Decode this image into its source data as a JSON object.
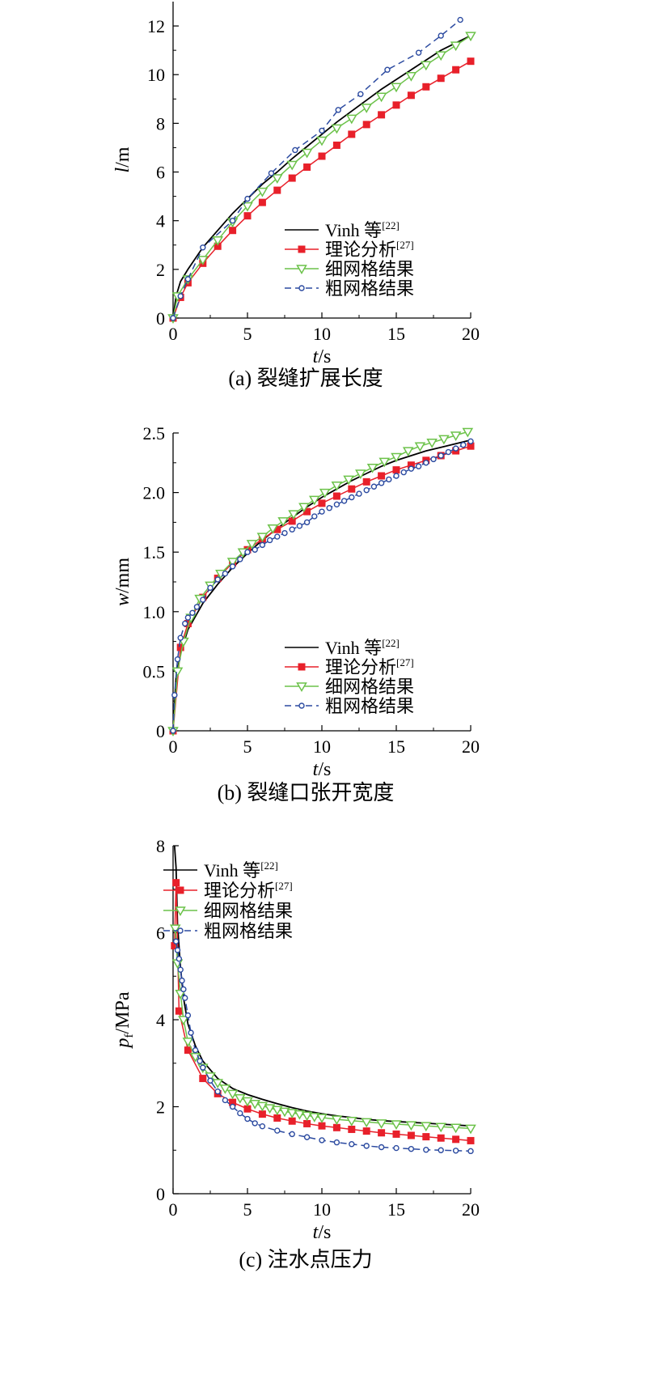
{
  "colors": {
    "vinh": "#000000",
    "theory": "#e8202a",
    "fine": "#6cc24a",
    "coarse": "#2b4aa0",
    "axis": "#000000",
    "background": "#ffffff"
  },
  "legend_labels": {
    "vinh": "Vinh 等",
    "vinh_ref": "[22]",
    "theory": "理论分析",
    "theory_ref": "[27]",
    "fine": "细网格结果",
    "coarse": "粗网格结果"
  },
  "chart_data": [
    {
      "type": "line",
      "caption": "(a) 裂缝扩展长度",
      "xlabel_italic": "t",
      "xlabel_rest": "/s",
      "ylabel_italic": "l",
      "ylabel_rest": "/m",
      "xlim": [
        0,
        20
      ],
      "ylim": [
        0,
        13
      ],
      "xticks": [
        0,
        5,
        10,
        15,
        20
      ],
      "yticks": [
        0,
        2,
        4,
        6,
        8,
        10,
        12
      ],
      "legend": "lower-right",
      "series": [
        {
          "key": "vinh",
          "style": "solid",
          "marker": "none",
          "x": [
            0,
            0.2,
            0.5,
            1,
            2,
            3,
            4,
            5,
            6,
            7,
            8,
            9,
            10,
            11,
            12,
            13,
            14,
            15,
            16,
            17,
            18,
            19,
            20
          ],
          "y": [
            0,
            0.9,
            1.5,
            2.0,
            2.9,
            3.6,
            4.3,
            4.9,
            5.5,
            6.0,
            6.55,
            7.05,
            7.55,
            8.05,
            8.5,
            8.95,
            9.4,
            9.8,
            10.2,
            10.6,
            11.0,
            11.3,
            11.6
          ]
        },
        {
          "key": "theory",
          "style": "solid",
          "marker": "square",
          "x": [
            0,
            0.5,
            1,
            2,
            3,
            4,
            5,
            6,
            7,
            8,
            9,
            10,
            11,
            12,
            13,
            14,
            15,
            16,
            17,
            18,
            19,
            20
          ],
          "y": [
            0,
            0.85,
            1.45,
            2.25,
            2.95,
            3.6,
            4.2,
            4.75,
            5.25,
            5.75,
            6.2,
            6.65,
            7.1,
            7.55,
            7.95,
            8.35,
            8.75,
            9.15,
            9.5,
            9.85,
            10.2,
            10.55
          ]
        },
        {
          "key": "fine",
          "style": "solid",
          "marker": "triangle-down",
          "x": [
            0,
            0.3,
            1,
            2,
            3,
            4,
            5,
            6,
            7,
            8,
            9,
            10,
            11,
            12,
            13,
            14,
            15,
            16,
            17,
            18,
            19,
            20
          ],
          "y": [
            0,
            0.9,
            1.6,
            2.4,
            3.2,
            3.95,
            4.6,
            5.2,
            5.75,
            6.3,
            6.8,
            7.3,
            7.8,
            8.2,
            8.65,
            9.1,
            9.5,
            9.95,
            10.4,
            10.8,
            11.2,
            11.6
          ]
        },
        {
          "key": "coarse",
          "style": "dashed",
          "marker": "circle",
          "x": [
            0,
            0.5,
            1,
            2,
            4,
            5,
            6.6,
            8.2,
            10,
            11.1,
            12.6,
            14.4,
            16.5,
            18,
            19.3
          ],
          "y": [
            0,
            0.9,
            1.6,
            2.9,
            4.0,
            4.9,
            5.95,
            6.9,
            7.7,
            8.55,
            9.2,
            10.2,
            10.9,
            11.6,
            12.25
          ]
        }
      ]
    },
    {
      "type": "line",
      "caption": "(b) 裂缝口张开宽度",
      "xlabel_italic": "t",
      "xlabel_rest": "/s",
      "ylabel_italic": "w",
      "ylabel_rest": "/mm",
      "xlim": [
        0,
        20
      ],
      "ylim": [
        0,
        2.5
      ],
      "xticks": [
        0,
        5,
        10,
        15,
        20
      ],
      "yticks": [
        0,
        0.5,
        1.0,
        1.5,
        2.0,
        2.5
      ],
      "ytick_labels": [
        "0",
        "0.5",
        "1.0",
        "1.5",
        "2.0",
        "2.5"
      ],
      "legend": "lower-right",
      "series": [
        {
          "key": "vinh",
          "style": "solid",
          "marker": "none",
          "x": [
            0,
            0.2,
            0.5,
            1,
            2,
            3,
            4,
            5,
            6,
            7,
            8,
            9,
            10,
            11,
            12,
            13,
            14,
            15,
            16,
            17,
            18,
            19,
            20
          ],
          "y": [
            0,
            0.45,
            0.65,
            0.85,
            1.07,
            1.23,
            1.37,
            1.49,
            1.6,
            1.7,
            1.79,
            1.88,
            1.96,
            2.03,
            2.1,
            2.16,
            2.22,
            2.27,
            2.31,
            2.35,
            2.38,
            2.41,
            2.44
          ]
        },
        {
          "key": "theory",
          "style": "solid",
          "marker": "square",
          "x": [
            0,
            0.5,
            1,
            2,
            3,
            4,
            5,
            6,
            7,
            8,
            9,
            10,
            11,
            12,
            13,
            14,
            15,
            16,
            17,
            18,
            19,
            20
          ],
          "y": [
            0,
            0.7,
            0.9,
            1.12,
            1.28,
            1.41,
            1.52,
            1.61,
            1.69,
            1.76,
            1.84,
            1.91,
            1.97,
            2.03,
            2.09,
            2.14,
            2.19,
            2.23,
            2.27,
            2.31,
            2.35,
            2.39
          ]
        },
        {
          "key": "fine",
          "style": "solid",
          "marker": "triangle-down",
          "x": [
            0,
            0.3,
            0.7,
            1.2,
            1.8,
            2.5,
            3.2,
            4,
            4.7,
            5.3,
            6,
            6.7,
            7.4,
            8.1,
            8.8,
            9.5,
            10.2,
            11,
            11.8,
            12.6,
            13.4,
            14.2,
            15,
            15.8,
            16.6,
            17.4,
            18.2,
            19,
            19.8
          ],
          "y": [
            0,
            0.5,
            0.75,
            0.95,
            1.11,
            1.22,
            1.32,
            1.42,
            1.5,
            1.57,
            1.63,
            1.7,
            1.76,
            1.82,
            1.88,
            1.94,
            2.0,
            2.06,
            2.11,
            2.16,
            2.21,
            2.26,
            2.3,
            2.35,
            2.39,
            2.42,
            2.45,
            2.48,
            2.51
          ]
        },
        {
          "key": "coarse",
          "style": "dashed",
          "marker": "circle",
          "x": [
            0,
            0.1,
            0.3,
            0.5,
            0.8,
            1,
            1.3,
            1.6,
            2,
            2.5,
            3,
            3.5,
            4,
            4.5,
            5,
            5.5,
            6,
            6.5,
            7,
            7.5,
            8,
            8.5,
            9,
            9.5,
            10,
            10.5,
            11,
            11.5,
            12,
            12.5,
            13,
            13.5,
            14,
            14.5,
            15,
            15.5,
            16,
            16.5,
            17,
            17.5,
            18,
            18.5,
            19,
            19.5,
            20
          ],
          "y": [
            0,
            0.3,
            0.6,
            0.78,
            0.9,
            0.95,
            0.99,
            1.04,
            1.1,
            1.2,
            1.27,
            1.32,
            1.38,
            1.44,
            1.5,
            1.52,
            1.56,
            1.6,
            1.63,
            1.66,
            1.69,
            1.72,
            1.75,
            1.8,
            1.84,
            1.87,
            1.9,
            1.93,
            1.96,
            1.99,
            2.02,
            2.05,
            2.08,
            2.11,
            2.14,
            2.17,
            2.2,
            2.22,
            2.25,
            2.28,
            2.31,
            2.34,
            2.37,
            2.4,
            2.43
          ]
        }
      ]
    },
    {
      "type": "line",
      "caption": "(c) 注水点压力",
      "xlabel_italic": "t",
      "xlabel_rest": "/s",
      "ylabel_italic": "p",
      "ylabel_sub": "f",
      "ylabel_rest": "/MPa",
      "xlim": [
        0,
        20
      ],
      "ylim": [
        0,
        8
      ],
      "xticks": [
        0,
        5,
        10,
        15,
        20
      ],
      "yticks": [
        0,
        2,
        4,
        6,
        8
      ],
      "legend": "top-right",
      "series": [
        {
          "key": "vinh",
          "style": "solid",
          "marker": "none",
          "x": [
            0.1,
            0.2,
            0.3,
            0.5,
            0.7,
            1,
            1.5,
            2,
            3,
            4,
            5,
            6,
            7,
            8,
            9,
            10,
            11,
            12,
            13,
            14,
            15,
            16,
            17,
            18,
            19,
            20
          ],
          "y": [
            8.0,
            7.5,
            6.2,
            5.2,
            4.5,
            3.9,
            3.4,
            3.05,
            2.65,
            2.42,
            2.28,
            2.17,
            2.07,
            1.98,
            1.9,
            1.84,
            1.79,
            1.75,
            1.71,
            1.68,
            1.66,
            1.64,
            1.62,
            1.6,
            1.58,
            1.56
          ]
        },
        {
          "key": "theory",
          "style": "solid",
          "marker": "square",
          "x": [
            0.1,
            0.2,
            0.4,
            1,
            2,
            3,
            4,
            5,
            6,
            7,
            8,
            9,
            10,
            11,
            12,
            13,
            14,
            15,
            16,
            17,
            18,
            19,
            20
          ],
          "y": [
            5.7,
            7.15,
            4.2,
            3.3,
            2.65,
            2.3,
            2.1,
            1.95,
            1.83,
            1.74,
            1.67,
            1.61,
            1.56,
            1.52,
            1.48,
            1.44,
            1.4,
            1.37,
            1.34,
            1.31,
            1.28,
            1.25,
            1.22
          ]
        },
        {
          "key": "fine",
          "style": "solid",
          "marker": "triangle-down",
          "x": [
            0.15,
            0.3,
            0.5,
            0.7,
            1,
            1.5,
            2,
            2.5,
            3,
            3.5,
            4,
            4.5,
            5,
            5.5,
            6,
            6.5,
            7,
            7.5,
            8,
            8.5,
            9,
            9.5,
            10,
            11,
            12,
            13,
            14,
            15,
            16,
            17,
            18,
            19,
            20
          ],
          "y": [
            6.1,
            5.3,
            4.6,
            4.0,
            3.5,
            3.15,
            2.9,
            2.7,
            2.55,
            2.42,
            2.3,
            2.2,
            2.13,
            2.07,
            2.02,
            1.97,
            1.93,
            1.89,
            1.86,
            1.83,
            1.8,
            1.77,
            1.75,
            1.71,
            1.68,
            1.65,
            1.62,
            1.6,
            1.58,
            1.56,
            1.54,
            1.52,
            1.5
          ]
        },
        {
          "key": "coarse",
          "style": "dashed",
          "marker": "circle",
          "x": [
            0.2,
            0.3,
            0.4,
            0.5,
            0.6,
            0.7,
            0.8,
            1,
            1.2,
            1.5,
            1.8,
            2,
            2.5,
            3,
            3.5,
            4,
            4.5,
            5,
            5.5,
            6,
            7,
            8,
            9,
            10,
            11,
            12,
            13,
            14,
            15,
            16,
            17,
            18,
            19,
            20
          ],
          "y": [
            5.8,
            5.6,
            5.4,
            5.15,
            4.9,
            4.7,
            4.5,
            4.1,
            3.7,
            3.3,
            3.05,
            2.9,
            2.6,
            2.35,
            2.15,
            2.0,
            1.85,
            1.72,
            1.62,
            1.55,
            1.45,
            1.37,
            1.3,
            1.23,
            1.18,
            1.14,
            1.1,
            1.07,
            1.05,
            1.03,
            1.01,
            1.0,
            0.99,
            0.98
          ]
        }
      ]
    }
  ]
}
